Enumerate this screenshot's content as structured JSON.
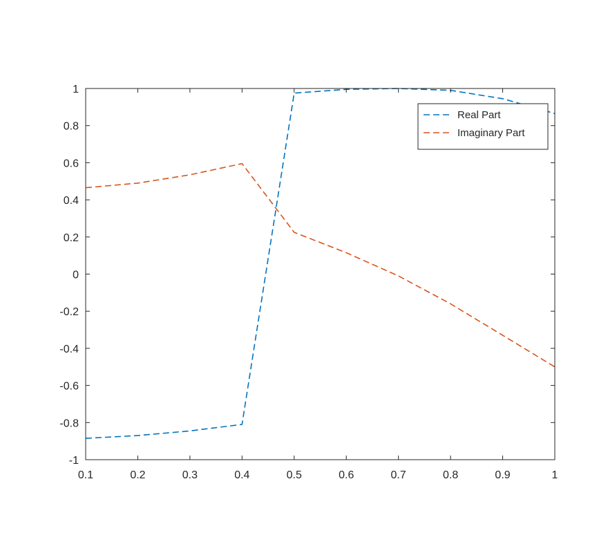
{
  "chart_data": {
    "type": "line",
    "title": "",
    "xlabel": "",
    "ylabel": "",
    "xlim": [
      0.1,
      1
    ],
    "ylim": [
      -1,
      1
    ],
    "xticks": [
      "0.1",
      "0.2",
      "0.3",
      "0.4",
      "0.5",
      "0.6",
      "0.7",
      "0.8",
      "0.9",
      "1"
    ],
    "yticks": [
      "-1",
      "-0.8",
      "-0.6",
      "-0.4",
      "-0.2",
      "0",
      "0.2",
      "0.4",
      "0.6",
      "0.8",
      "1"
    ],
    "grid": false,
    "legend_position": "top-right",
    "series": [
      {
        "name": "Real Part",
        "color": "#0072BD",
        "line_style": "dashed",
        "x": [
          0.1,
          0.2,
          0.3,
          0.4,
          0.5,
          0.6,
          0.7,
          0.8,
          0.9,
          1.0
        ],
        "y": [
          -0.885,
          -0.87,
          -0.845,
          -0.81,
          0.975,
          0.995,
          1.0,
          0.99,
          0.945,
          0.865
        ]
      },
      {
        "name": "Imaginary Part",
        "color": "#D95319",
        "line_style": "dashed",
        "x": [
          0.1,
          0.2,
          0.3,
          0.4,
          0.5,
          0.6,
          0.7,
          0.8,
          0.9,
          1.0
        ],
        "y": [
          0.465,
          0.49,
          0.535,
          0.595,
          0.225,
          0.115,
          -0.01,
          -0.16,
          -0.33,
          -0.5
        ]
      }
    ]
  }
}
